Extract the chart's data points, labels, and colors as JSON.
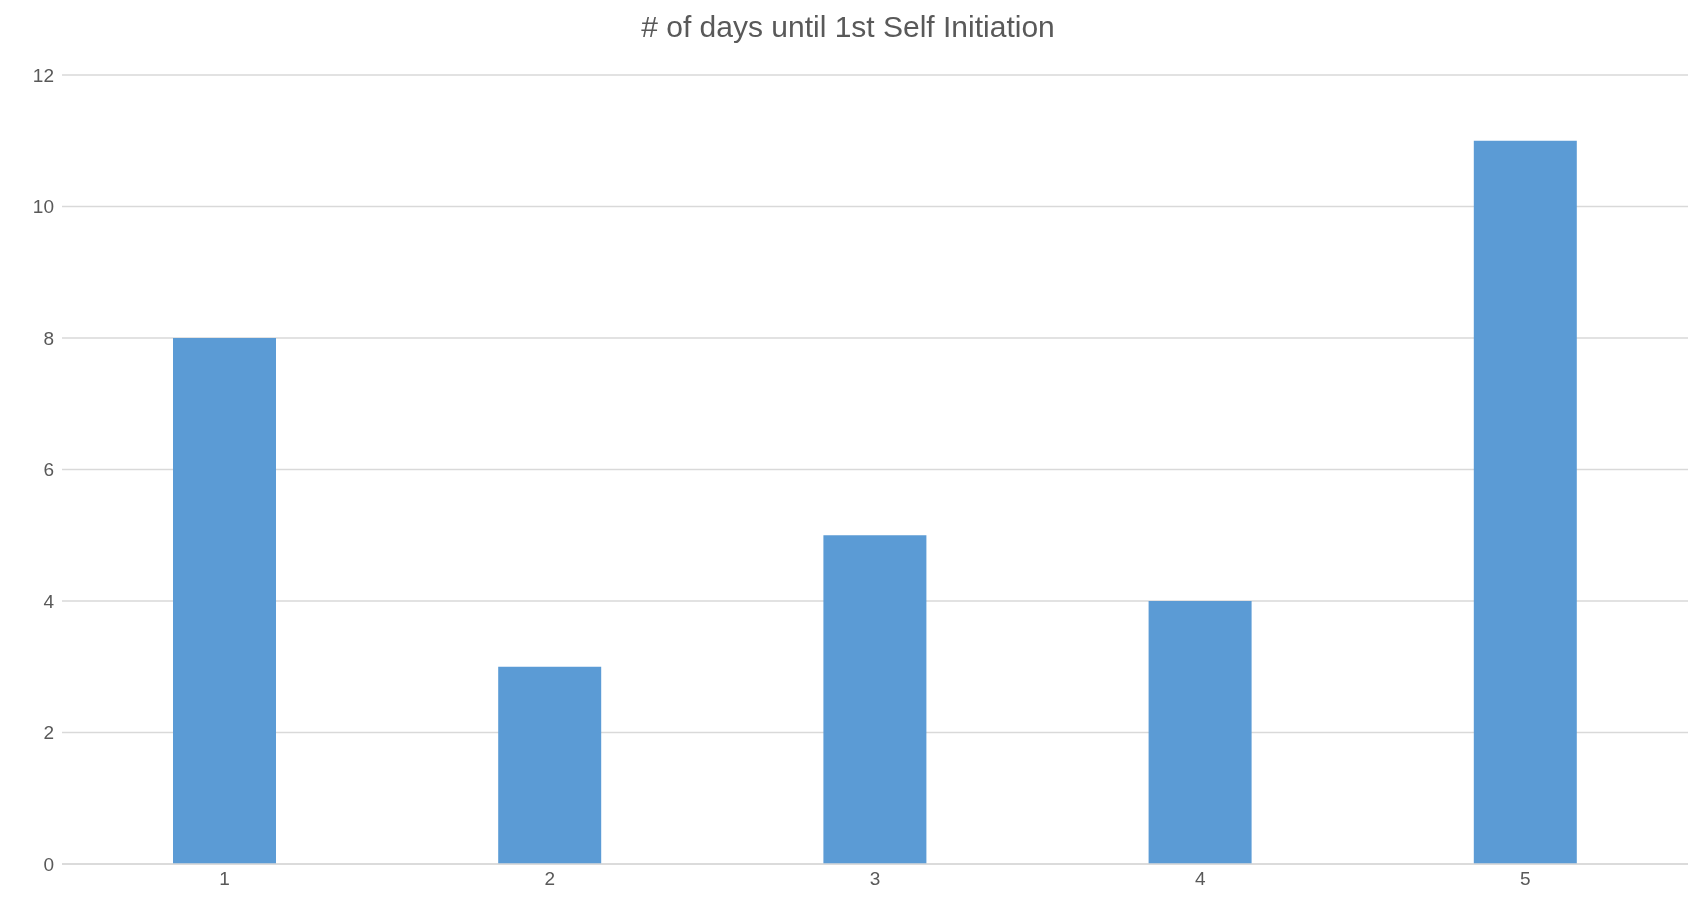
{
  "chart_data": {
    "type": "bar",
    "title": "# of days until 1st Self Initiation",
    "categories": [
      "1",
      "2",
      "3",
      "4",
      "5"
    ],
    "values": [
      8,
      3,
      5,
      4,
      11
    ],
    "color": "#5b9bd5",
    "ylim": [
      0,
      12
    ],
    "yticks": [
      0,
      2,
      4,
      6,
      8,
      10,
      12
    ],
    "grid": "y"
  }
}
